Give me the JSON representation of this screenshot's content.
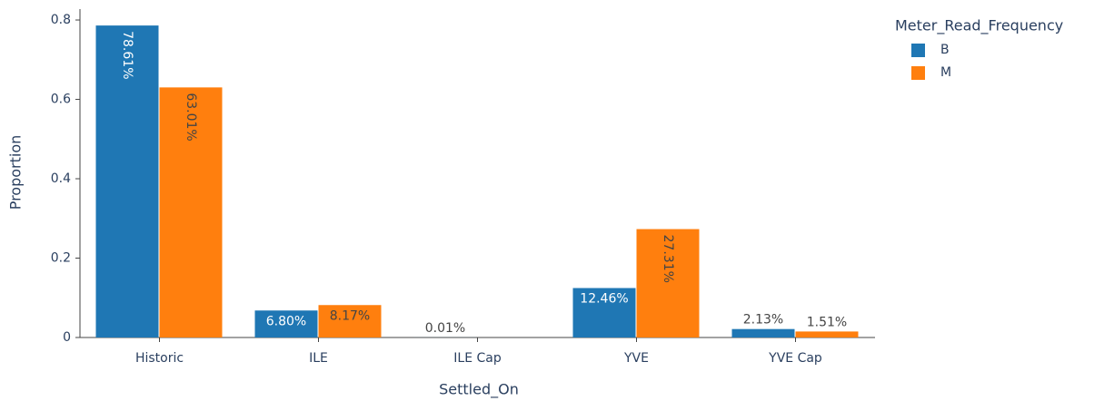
{
  "chart_data": {
    "type": "bar",
    "x_label": "Settled_On",
    "y_label": "Proportion",
    "legend_title": "Meter_Read_Frequency",
    "legend_position": "right",
    "categories": [
      "Historic",
      "ILE",
      "ILE Cap",
      "YVE",
      "YVE Cap"
    ],
    "series": [
      {
        "name": "B",
        "color": "#1f77b4",
        "values": [
          0.7861,
          0.068,
          0.0001,
          0.1246,
          0.0213
        ],
        "value_labels": [
          "78.61%",
          "6.80%",
          "0.01%",
          "12.46%",
          "2.13%"
        ]
      },
      {
        "name": "M",
        "color": "#ff7f0e",
        "values": [
          0.6301,
          0.0817,
          null,
          0.2731,
          0.0151
        ],
        "value_labels": [
          "63.01%",
          "8.17%",
          null,
          "27.31%",
          "1.51%"
        ]
      }
    ],
    "ylim": [
      0,
      0.8275
    ],
    "yticks": [
      0,
      0.2,
      0.4,
      0.6,
      0.8
    ],
    "grid": false
  }
}
